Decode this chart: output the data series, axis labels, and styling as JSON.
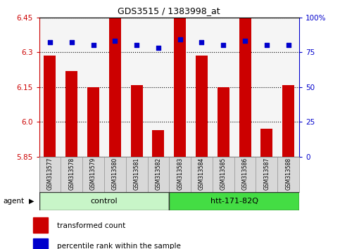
{
  "title": "GDS3515 / 1383998_at",
  "samples": [
    "GSM313577",
    "GSM313578",
    "GSM313579",
    "GSM313580",
    "GSM313581",
    "GSM313582",
    "GSM313583",
    "GSM313584",
    "GSM313585",
    "GSM313586",
    "GSM313587",
    "GSM313588"
  ],
  "red_values": [
    6.285,
    6.22,
    6.15,
    6.45,
    6.16,
    5.965,
    6.45,
    6.285,
    6.15,
    6.45,
    5.97,
    6.16
  ],
  "blue_values": [
    82,
    82,
    80,
    83,
    80,
    78,
    84,
    82,
    80,
    83,
    80,
    80
  ],
  "ylim_left": [
    5.85,
    6.45
  ],
  "ylim_right": [
    0,
    100
  ],
  "yticks_left": [
    5.85,
    6.0,
    6.15,
    6.3,
    6.45
  ],
  "yticks_right": [
    0,
    25,
    50,
    75,
    100
  ],
  "ytick_labels_right": [
    "0",
    "25",
    "50",
    "75",
    "100%"
  ],
  "groups": [
    {
      "label": "control",
      "start": 0,
      "end": 6,
      "color": "#c8f5c8"
    },
    {
      "label": "htt-171-82Q",
      "start": 6,
      "end": 12,
      "color": "#44dd44"
    }
  ],
  "agent_label": "agent",
  "bar_color": "#cc0000",
  "dot_color": "#0000cc",
  "bar_bottom": 5.85,
  "bar_width": 0.55,
  "plot_bg": "#f5f5f5",
  "legend_items": [
    "transformed count",
    "percentile rank within the sample"
  ]
}
